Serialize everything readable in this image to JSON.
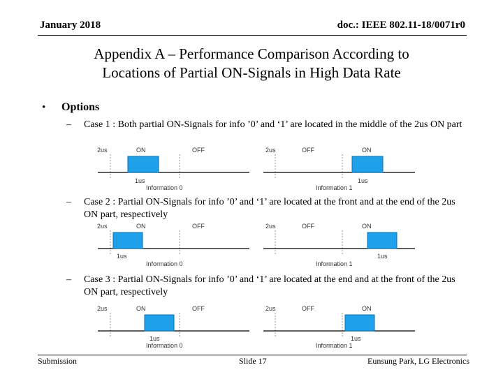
{
  "header": {
    "date": "January 2018",
    "doc_id": "doc.: IEEE 802.11-18/0071r0"
  },
  "title": {
    "line1": "Appendix A – Performance Comparison According to",
    "line2": "Locations of Partial ON-Signals in High Data Rate"
  },
  "bullet_symbol": "•",
  "options_heading": "Options",
  "dash_symbol": "–",
  "cases": [
    {
      "text": "Case 1 : Both partial ON-Signals for info ’0’ and ‘1’ are located in the middle of the 2us ON part",
      "diagrams": [
        {
          "left_label": "2us",
          "seg1": "ON",
          "seg2": "OFF",
          "pulse_label": "1us",
          "info_label": "Information 0"
        },
        {
          "left_label": "2us",
          "seg1": "OFF",
          "seg2": "ON",
          "pulse_label": "",
          "info_label": "Information 1",
          "pulse_label_b": "1us"
        }
      ]
    },
    {
      "text": "Case 2 : Partial ON-Signals for info ’0’ and ‘1’ are located at the front and at the end of the 2us ON part, respectively",
      "diagrams": [
        {
          "left_label": "2us",
          "seg1": "ON",
          "seg2": "OFF",
          "pulse_label": "1us",
          "info_label": "Information 0"
        },
        {
          "left_label": "2us",
          "seg1": "OFF",
          "seg2": "ON",
          "pulse_label": "1us",
          "info_label": "Information 1"
        }
      ]
    },
    {
      "text": "Case 3 : Partial ON-Signals for info ’0’ and ‘1’ are located at the end and at the front of the 2us ON part, respectively",
      "diagrams": [
        {
          "left_label": "2us",
          "seg1": "ON",
          "seg2": "OFF",
          "pulse_label": "1us",
          "info_label": "Information 0"
        },
        {
          "left_label": "2us",
          "seg1": "OFF",
          "seg2": "ON",
          "pulse_label": "1us",
          "info_label": "Information 1"
        }
      ]
    }
  ],
  "footer": {
    "left": "Submission",
    "center": "Slide 17",
    "right": "Eunsung Park, LG Electronics"
  },
  "colors": {
    "pulse_fill": "#1ea1e8",
    "pulse_stroke": "#0a6fb0",
    "grid": "#999999"
  }
}
